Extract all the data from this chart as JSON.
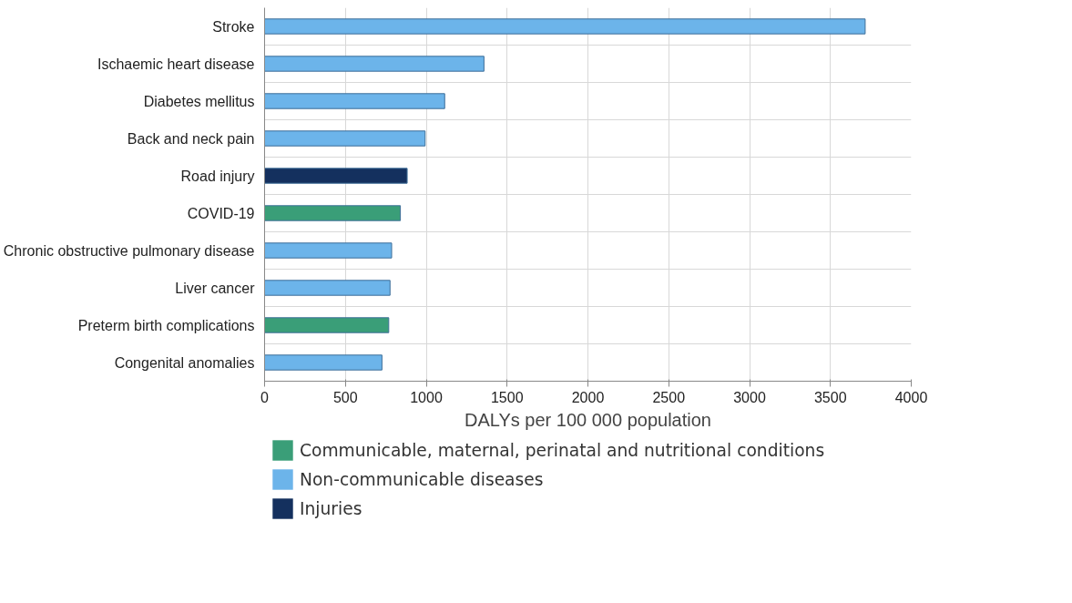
{
  "chart_data": {
    "type": "bar",
    "orientation": "horizontal",
    "xlabel": "DALYs per 100 000 population",
    "categories": [
      "Stroke",
      "Ischaemic heart disease",
      "Diabetes mellitus",
      "Back and neck pain",
      "Road injury",
      "COVID-19",
      "Chronic obstructive pulmonary disease",
      "Liver cancer",
      "Preterm birth complications",
      "Congenital anomalies"
    ],
    "series": [
      {
        "name": "Communicable, maternal, perinatal and nutritional conditions",
        "color": "#3a9e78",
        "values": [
          null,
          null,
          null,
          null,
          null,
          840,
          null,
          null,
          768,
          null
        ]
      },
      {
        "name": "Non-communicable diseases",
        "color": "#6cb4ea",
        "values": [
          3715,
          1357,
          1114,
          993,
          null,
          null,
          786,
          776,
          null,
          726
        ]
      },
      {
        "name": "Injuries",
        "color": "#14305e",
        "values": [
          null,
          null,
          null,
          null,
          882,
          null,
          null,
          null,
          null,
          null
        ]
      }
    ],
    "xlim": [
      0,
      4000
    ],
    "xticks": [
      0,
      500,
      1000,
      1500,
      2000,
      2500,
      3000,
      3500,
      4000
    ],
    "grid": true,
    "legend": "bottom left"
  }
}
